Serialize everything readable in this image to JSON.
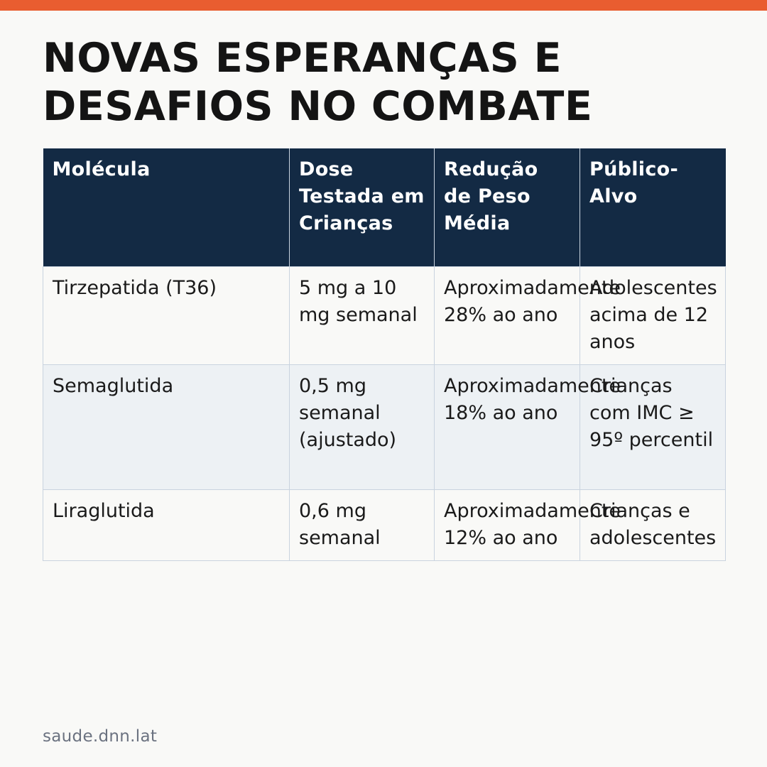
{
  "page": {
    "title": "NOVAS ESPERANÇAS E DESAFIOS NO COMBATE",
    "footer": "saude.dnn.lat",
    "colors": {
      "accent_bar": "#e95d30",
      "header_bg": "#132a44",
      "header_text": "#ffffff",
      "row_alt_bg": "#edf1f4",
      "border": "#c9d3df"
    }
  },
  "table": {
    "headers": [
      "Molécula",
      "Dose Testada em Crianças",
      "Redução de Peso Média",
      "Público-Alvo"
    ],
    "rows": [
      [
        "Tirzepatida (T36)",
        "5 mg a 10 mg semanal",
        "Aproximadamente 28% ao ano",
        "Adolescentes acima de 12 anos"
      ],
      [
        "Semaglutida",
        "0,5 mg semanal (ajustado)",
        "Aproximadamente 18% ao ano",
        "Crianças com IMC ≥ 95º percentil"
      ],
      [
        "Liraglutida",
        "0,6 mg semanal",
        "Aproximadamente 12% ao ano",
        "Crianças e adolescentes"
      ]
    ]
  }
}
